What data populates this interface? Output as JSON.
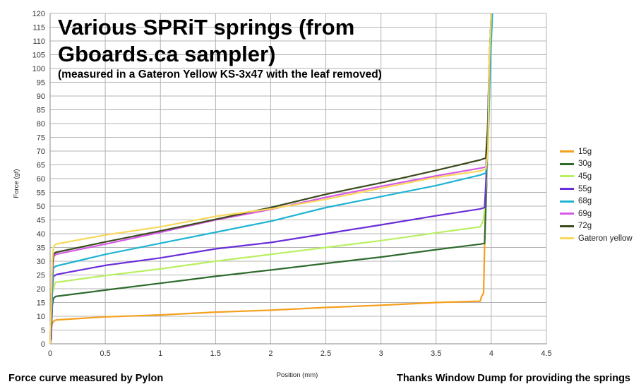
{
  "title": "Various SPRiT springs (from Gboards.ca sampler)",
  "subtitle": "(measured in a Gateron Yellow KS-3x47 with the leaf removed)",
  "footer_left": "Force curve measured by Pylon",
  "footer_right": "Thanks Window Dump for providing the springs",
  "chart_data": {
    "type": "line",
    "title": "Various SPRiT springs (from Gboards.ca sampler)",
    "subtitle": "(measured in a Gateron Yellow KS-3x47 with the leaf removed)",
    "xlabel": "Position (mm)",
    "ylabel": "Force (gf)",
    "xlim": [
      0,
      4.5
    ],
    "ylim": [
      0,
      120
    ],
    "xticks": [
      "0",
      "0.5",
      "1",
      "1.5",
      "2",
      "2.5",
      "3",
      "3.5",
      "4",
      "4.5"
    ],
    "yticks": [
      "0",
      "5",
      "10",
      "15",
      "20",
      "25",
      "30",
      "35",
      "40",
      "45",
      "50",
      "55",
      "60",
      "65",
      "70",
      "75",
      "80",
      "85",
      "90",
      "95",
      "100",
      "105",
      "110",
      "115",
      "120"
    ],
    "grid": true,
    "legend_position": "right",
    "series": [
      {
        "name": "15g",
        "color": "#f5a01e",
        "x": [
          0,
          0.02,
          0.04,
          0.06,
          0.5,
          1,
          1.5,
          2,
          2.5,
          3,
          3.5,
          3.9,
          3.91,
          3.93,
          3.95,
          3.96,
          3.98,
          4.0
        ],
        "y": [
          4,
          7.5,
          8.5,
          8.7,
          9.8,
          10.5,
          11.5,
          12.2,
          13.2,
          14,
          15,
          15.5,
          17,
          18.5,
          55,
          65,
          100,
          120
        ]
      },
      {
        "name": "30g",
        "color": "#2e6b2e",
        "x": [
          0,
          0.01,
          0.02,
          0.03,
          0.05,
          0.5,
          1,
          1.5,
          2,
          2.5,
          3,
          3.5,
          3.9,
          3.94,
          3.96,
          3.98,
          4.0
        ],
        "y": [
          1,
          3,
          14,
          16.5,
          17.2,
          19.5,
          22,
          24.5,
          26.8,
          29.2,
          31.5,
          34.2,
          36.2,
          36.5,
          60,
          95,
          120
        ]
      },
      {
        "name": "45g",
        "color": "#b8f060",
        "x": [
          0,
          0.01,
          0.02,
          0.04,
          0.05,
          0.5,
          1,
          1.5,
          2,
          2.5,
          3,
          3.5,
          3.9,
          3.93,
          3.94,
          3.96,
          3.98,
          4.0
        ],
        "y": [
          0,
          3,
          18,
          21.5,
          22.3,
          24.8,
          27.2,
          30,
          32.5,
          35,
          37.5,
          40.3,
          42.5,
          45,
          50.5,
          60,
          95,
          120
        ]
      },
      {
        "name": "55g",
        "color": "#6a2ed8",
        "x": [
          0,
          0.01,
          0.02,
          0.03,
          0.06,
          0.5,
          1,
          1.5,
          2,
          2.5,
          3,
          3.5,
          3.9,
          3.94,
          3.96,
          3.98,
          4.0
        ],
        "y": [
          0,
          2,
          20,
          24.5,
          25.2,
          28.5,
          31.2,
          34.5,
          36.8,
          40,
          43.2,
          46.5,
          49,
          49.5,
          65,
          100,
          120
        ]
      },
      {
        "name": "68g",
        "color": "#1eb4d2",
        "x": [
          0,
          0.02,
          0.03,
          0.05,
          0.5,
          1,
          1.5,
          2,
          2.5,
          3,
          3.5,
          3.9,
          3.95,
          3.97,
          3.99,
          4.01
        ],
        "y": [
          0,
          20,
          27.5,
          28.2,
          32.5,
          36.5,
          40.5,
          44.5,
          49.5,
          53.5,
          57.5,
          61.3,
          62,
          70,
          100,
          120
        ]
      },
      {
        "name": "69g",
        "color": "#d65ae6",
        "x": [
          0,
          0.02,
          0.03,
          0.05,
          0.5,
          1,
          1.5,
          2,
          2.5,
          3,
          3.5,
          3.9,
          3.95,
          3.97,
          3.98,
          4.0
        ],
        "y": [
          0,
          25,
          31.5,
          32.5,
          36.2,
          40.5,
          45,
          48.8,
          53.2,
          57.2,
          61,
          63.8,
          64.2,
          75,
          100,
          120
        ]
      },
      {
        "name": "72g",
        "color": "#3a4a1c",
        "x": [
          0,
          0.02,
          0.03,
          0.05,
          0.5,
          1,
          1.5,
          2,
          2.5,
          3,
          3.5,
          3.9,
          3.95,
          3.97,
          3.98,
          4.0
        ],
        "y": [
          0,
          28,
          32.5,
          33.2,
          37,
          41,
          45.2,
          49.5,
          54.3,
          58.5,
          63,
          66.8,
          67.5,
          80,
          100,
          120
        ]
      },
      {
        "name": "Gateron yellow",
        "color": "#f8d85a",
        "x": [
          0,
          0.02,
          0.03,
          0.05,
          0.5,
          1,
          1.5,
          2,
          2.5,
          3,
          3.5,
          3.9,
          3.95,
          3.97,
          3.98,
          4.0
        ],
        "y": [
          0,
          30,
          35,
          36.2,
          39.5,
          42.5,
          46.3,
          49,
          52.5,
          56.5,
          60.5,
          62.8,
          63.5,
          70,
          100,
          120
        ]
      }
    ]
  }
}
